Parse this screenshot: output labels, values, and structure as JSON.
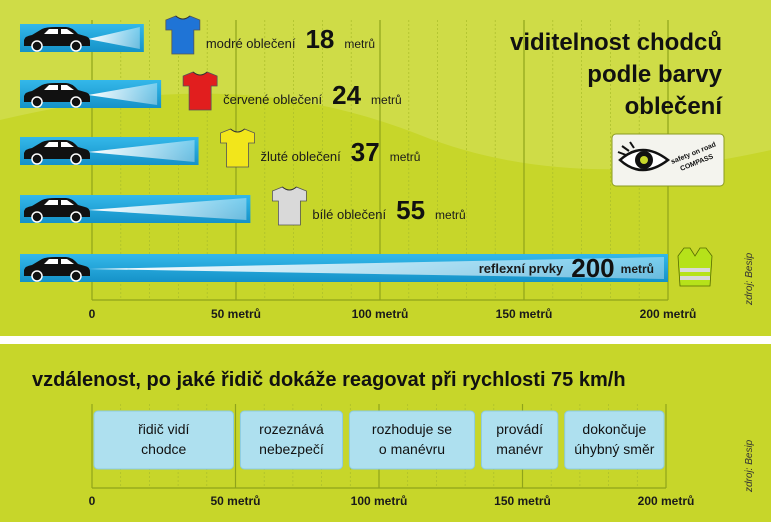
{
  "colors": {
    "background": "#c7d62a",
    "background_light": "#dbe680",
    "bar_blue": "#1fa9df",
    "grid": "#9fb41f",
    "phase_box": "#aee0ef",
    "shirt_blue": "#1f74d6",
    "shirt_red": "#e11e1e",
    "shirt_yellow": "#f2e61b",
    "shirt_white": "#d9d9d9",
    "vest": "#b6e21a"
  },
  "top": {
    "title_lines": [
      "viditelnost chodců",
      "podle barvy",
      "oblečení"
    ],
    "source": "zdroj: Besip",
    "badge_text": [
      "safety on road",
      "COMPASS"
    ],
    "unit": "metrů"
  },
  "bottom": {
    "title": "vzdálenost, po jaké řidič dokáže reagovat při rychlosti 75 km/h",
    "source": "zdroj: Besip"
  },
  "chart_data": [
    {
      "type": "bar",
      "orientation": "horizontal",
      "xlim": [
        0,
        200
      ],
      "xticks": [
        "0",
        "50 metrů",
        "100 metrů",
        "150 metrů",
        "200 metrů"
      ],
      "xtick_values": [
        0,
        50,
        100,
        150,
        200
      ],
      "grid": true,
      "series": [
        {
          "label": "modré oblečení",
          "value": 18,
          "value_text": "18",
          "unit": "metrů",
          "icon": "blue-tshirt-icon",
          "color_key": "shirt_blue"
        },
        {
          "label": "červené oblečení",
          "value": 24,
          "value_text": "24",
          "unit": "metrů",
          "icon": "red-tshirt-icon",
          "color_key": "shirt_red"
        },
        {
          "label": "žluté oblečení",
          "value": 37,
          "value_text": "37",
          "unit": "metrů",
          "icon": "yellow-tshirt-icon",
          "color_key": "shirt_yellow"
        },
        {
          "label": "bílé oblečení",
          "value": 55,
          "value_text": "55",
          "unit": "metrů",
          "icon": "white-tshirt-icon",
          "color_key": "shirt_white"
        },
        {
          "label": "reflexní prvky",
          "value": 200,
          "value_text": "200",
          "unit": "metrů",
          "icon": "reflective-vest-icon",
          "color_key": "vest"
        }
      ]
    },
    {
      "type": "timeline",
      "xlim": [
        0,
        200
      ],
      "xticks": [
        "0",
        "50 metrů",
        "100 metrů",
        "150 metrů",
        "200 metrů"
      ],
      "xtick_values": [
        0,
        50,
        100,
        150,
        200
      ],
      "phases": [
        {
          "lines": [
            "řidič vidí",
            "chodce"
          ],
          "start": 0,
          "end": 50
        },
        {
          "lines": [
            "rozeznává",
            "nebezpečí"
          ],
          "start": 51,
          "end": 88
        },
        {
          "lines": [
            "rozhoduje se",
            "o manévru"
          ],
          "start": 89,
          "end": 134
        },
        {
          "lines": [
            "provádí",
            "manévr"
          ],
          "start": 135,
          "end": 163
        },
        {
          "lines": [
            "dokončuje",
            "úhybný směr"
          ],
          "start": 164,
          "end": 200
        }
      ]
    }
  ]
}
